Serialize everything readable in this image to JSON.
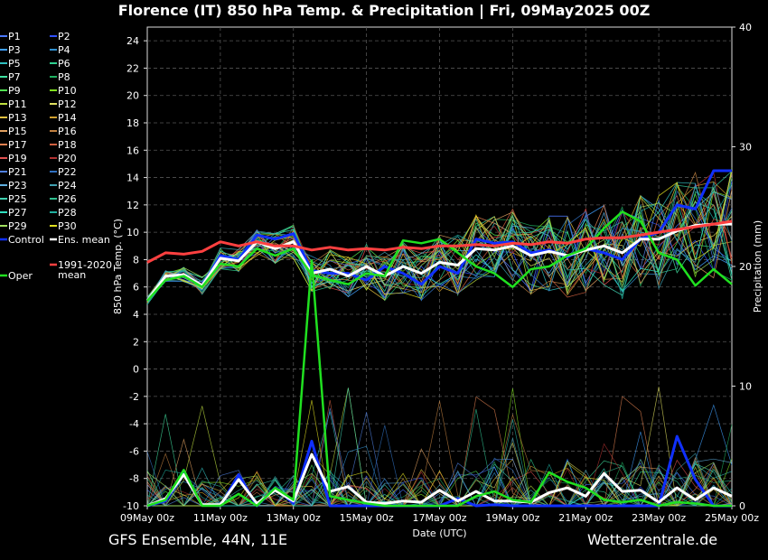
{
  "title": "Florence  (IT)  850 hPa Temp. & Precipitation | Fri, 09May2025 00Z",
  "footer_left": "GFS Ensemble, 44N, 11E",
  "footer_right": "Wetterzentrale.de",
  "chart_data": {
    "type": "line",
    "ylabel": "850 hPa Temp. (°C)",
    "ylabel_right": "Precipitation (mm)",
    "xlabel": "Date (UTC)",
    "ylim": [
      -10,
      25
    ],
    "ylim_right": [
      0,
      40
    ],
    "yticks": [
      "-10",
      "-8",
      "-6",
      "-4",
      "-2",
      "0",
      "2",
      "4",
      "6",
      "8",
      "10",
      "12",
      "14",
      "16",
      "18",
      "20",
      "22",
      "24"
    ],
    "yticks_right": [
      "0",
      "10",
      "20",
      "30",
      "40"
    ],
    "xticks": [
      "09May 00z",
      "11May 00z",
      "13May 00z",
      "15May 00z",
      "17May 00z",
      "19May 00z",
      "21May 00z",
      "23May 00z",
      "25May 00z"
    ],
    "x_range_hours": [
      0,
      384
    ],
    "grid": true,
    "legend_position": "left",
    "legend": [
      {
        "name": "P1",
        "color": "#4a78ff"
      },
      {
        "name": "P2",
        "color": "#3050ff"
      },
      {
        "name": "P3",
        "color": "#40a0ff"
      },
      {
        "name": "P4",
        "color": "#3090d0"
      },
      {
        "name": "P5",
        "color": "#30c0c0"
      },
      {
        "name": "P6",
        "color": "#30d090"
      },
      {
        "name": "P7",
        "color": "#40e0a0"
      },
      {
        "name": "P8",
        "color": "#20b060"
      },
      {
        "name": "P9",
        "color": "#50e050"
      },
      {
        "name": "P10",
        "color": "#80e020"
      },
      {
        "name": "P11",
        "color": "#c0e040"
      },
      {
        "name": "P12",
        "color": "#e0e060"
      },
      {
        "name": "P13",
        "color": "#e0c040"
      },
      {
        "name": "P14",
        "color": "#d0a030"
      },
      {
        "name": "P15",
        "color": "#e0a060"
      },
      {
        "name": "P16",
        "color": "#c08040"
      },
      {
        "name": "P17",
        "color": "#e08050"
      },
      {
        "name": "P18",
        "color": "#d06040"
      },
      {
        "name": "P19",
        "color": "#e05050"
      },
      {
        "name": "P20",
        "color": "#b03030"
      },
      {
        "name": "P21",
        "color": "#5080e0"
      },
      {
        "name": "P22",
        "color": "#3070c0"
      },
      {
        "name": "P23",
        "color": "#60b0e0"
      },
      {
        "name": "P24",
        "color": "#40a0b0"
      },
      {
        "name": "P25",
        "color": "#40d0b0"
      },
      {
        "name": "P26",
        "color": "#30c090"
      },
      {
        "name": "P27",
        "color": "#30e0c0"
      },
      {
        "name": "P28",
        "color": "#20b0a0"
      },
      {
        "name": "P29",
        "color": "#a0e060"
      },
      {
        "name": "P30",
        "color": "#e0e020"
      },
      {
        "name": "Control",
        "color": "#1030ff"
      },
      {
        "name": "Ens. mean",
        "color": "#ffffff"
      },
      {
        "name": "Oper",
        "color": "#20e020"
      },
      {
        "name": "1991-2020\nmean",
        "color": "#ff4040"
      }
    ],
    "series": [
      {
        "name": "Control",
        "color": "#1030ff",
        "axis": "left",
        "x": [
          0,
          12,
          24,
          36,
          48,
          60,
          72,
          84,
          96,
          108,
          120,
          132,
          144,
          156,
          168,
          180,
          192,
          204,
          216,
          228,
          240,
          252,
          264,
          276,
          288,
          300,
          312,
          324,
          336,
          348,
          360,
          372,
          384
        ],
        "values": [
          5,
          6.8,
          6.9,
          6.1,
          8.3,
          8,
          9.8,
          9.5,
          9.9,
          7.2,
          7,
          7,
          6.5,
          7.5,
          7,
          6.2,
          7.5,
          7,
          9.5,
          9.2,
          9.3,
          8.5,
          8.7,
          8.2,
          8.8,
          8.5,
          8,
          9.5,
          10,
          12,
          11.7,
          14.5,
          14.5
        ]
      },
      {
        "name": "Ens. mean",
        "color": "#ffffff",
        "axis": "left",
        "x": [
          0,
          12,
          24,
          36,
          48,
          60,
          72,
          84,
          96,
          108,
          120,
          132,
          144,
          156,
          168,
          180,
          192,
          204,
          216,
          228,
          240,
          252,
          264,
          276,
          288,
          300,
          312,
          324,
          336,
          348,
          360,
          372,
          384
        ],
        "values": [
          5,
          6.8,
          6.9,
          6.1,
          8.1,
          7.9,
          9.3,
          8.8,
          9.3,
          7,
          7.3,
          6.8,
          7.5,
          6.8,
          7.5,
          7,
          7.8,
          7.6,
          8.8,
          8.7,
          9,
          8.3,
          8.6,
          8.3,
          8.7,
          9,
          8.5,
          9.5,
          9.5,
          10.1,
          10.5,
          10.6,
          10.6
        ]
      },
      {
        "name": "Oper",
        "color": "#20e020",
        "axis": "left",
        "x": [
          0,
          12,
          24,
          36,
          48,
          60,
          72,
          84,
          96,
          108,
          120,
          132,
          144,
          156,
          168,
          180,
          192,
          204,
          216,
          228,
          240,
          252,
          264,
          276,
          288,
          300,
          312,
          324,
          336,
          348,
          360,
          372,
          384
        ],
        "values": [
          5,
          6.5,
          6.8,
          6,
          7.7,
          7.5,
          8.8,
          8.3,
          8.8,
          6.9,
          6.5,
          6.2,
          7,
          6.8,
          9.4,
          9.2,
          9.5,
          8.5,
          7.5,
          7,
          6,
          7.3,
          7.5,
          8.3,
          8.8,
          10.3,
          11.5,
          10.8,
          8.5,
          8,
          6.1,
          7.3,
          6.2
        ]
      },
      {
        "name": "1991-2020 mean",
        "color": "#ff4040",
        "axis": "left",
        "x": [
          0,
          12,
          24,
          36,
          48,
          60,
          72,
          84,
          96,
          108,
          120,
          132,
          144,
          156,
          168,
          180,
          192,
          204,
          216,
          228,
          240,
          252,
          264,
          276,
          288,
          300,
          312,
          324,
          336,
          348,
          360,
          372,
          384
        ],
        "values": [
          7.8,
          8.5,
          8.4,
          8.6,
          9.3,
          9,
          9.3,
          9,
          9,
          8.7,
          8.9,
          8.7,
          8.8,
          8.7,
          8.9,
          8.8,
          9,
          9,
          9.1,
          9,
          9.2,
          9.1,
          9.3,
          9.2,
          9.5,
          9.6,
          9.6,
          9.8,
          10,
          10.2,
          10.4,
          10.6,
          10.8
        ]
      },
      {
        "name": "Control precip",
        "color": "#1030ff",
        "axis": "right",
        "x": [
          0,
          12,
          24,
          36,
          48,
          60,
          72,
          84,
          96,
          108,
          120,
          132,
          144,
          156,
          168,
          180,
          192,
          204,
          216,
          228,
          240,
          252,
          264,
          276,
          288,
          300,
          312,
          324,
          336,
          348,
          360,
          372,
          384
        ],
        "values": [
          0,
          0.4,
          2.7,
          0.1,
          0,
          2.6,
          0,
          1.5,
          0.2,
          5.4,
          0,
          0,
          0,
          0,
          0,
          0,
          0,
          0.6,
          0,
          0.1,
          0,
          0,
          0,
          0,
          0,
          0,
          0,
          0,
          0,
          5.8,
          2.2,
          0,
          0
        ]
      },
      {
        "name": "Ens. mean precip",
        "color": "#ffffff",
        "axis": "right",
        "x": [
          0,
          12,
          24,
          36,
          48,
          60,
          72,
          84,
          96,
          108,
          120,
          132,
          144,
          156,
          168,
          180,
          192,
          204,
          216,
          228,
          240,
          252,
          264,
          276,
          288,
          300,
          312,
          324,
          336,
          348,
          360,
          372,
          384
        ],
        "values": [
          0,
          0.6,
          2.6,
          0.1,
          0.1,
          2.2,
          0.2,
          1.3,
          0.4,
          4.3,
          1.2,
          1.6,
          0.3,
          0.2,
          0.4,
          0.3,
          1.3,
          0.4,
          1.2,
          0.4,
          0.4,
          0.3,
          1.1,
          1.5,
          0.8,
          2.7,
          1.2,
          1.3,
          0.3,
          1.5,
          0.5,
          1.5,
          0.8
        ]
      },
      {
        "name": "Oper precip",
        "color": "#20e020",
        "axis": "right",
        "x": [
          0,
          12,
          24,
          36,
          48,
          60,
          72,
          84,
          96,
          108,
          120,
          132,
          144,
          156,
          168,
          180,
          192,
          204,
          216,
          228,
          240,
          252,
          264,
          276,
          288,
          300,
          312,
          324,
          336,
          348,
          360,
          372,
          384
        ],
        "values": [
          0,
          0.5,
          3,
          0,
          0,
          1,
          0,
          1.5,
          0.5,
          20.5,
          0.8,
          0.5,
          0.2,
          0,
          0,
          0,
          0,
          0,
          0.8,
          1.2,
          0.5,
          0.3,
          2.8,
          2,
          1.5,
          0.5,
          0.3,
          0.5,
          0,
          0.3,
          0.2,
          0,
          0
        ]
      }
    ]
  }
}
